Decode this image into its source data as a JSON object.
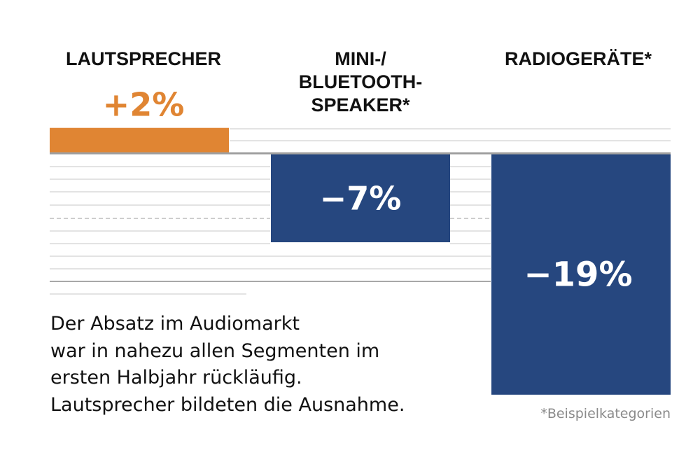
{
  "chart_data": {
    "type": "bar",
    "categories": [
      "LAUTSPRECHER",
      "MINI-/ BLUETOOTH-SPEAKER*",
      "RADIOGERÄTE*"
    ],
    "category_label_lines": [
      [
        "LAUTSPRECHER"
      ],
      [
        "MINI-/",
        "BLUETOOTH-",
        "SPEAKER*"
      ],
      [
        "RADIOGERÄTE*"
      ]
    ],
    "values": [
      2,
      -7,
      -19
    ],
    "value_labels": [
      "+2%",
      "−7%",
      "−19%"
    ],
    "ylabel": "",
    "xlabel": "",
    "unit": "%",
    "colors": {
      "positive": "#E08533",
      "negative": "#26477F",
      "grid": "#e3e3e3",
      "baseline": "#a0a0a0"
    }
  },
  "description": [
    "Der Absatz im Audiomarkt",
    "war in nahezu allen Segmenten im",
    "ersten Halbjahr rückläufig.",
    "Lautsprecher bildeten die Ausnahme."
  ],
  "footnote": "*Beispielkategorien"
}
